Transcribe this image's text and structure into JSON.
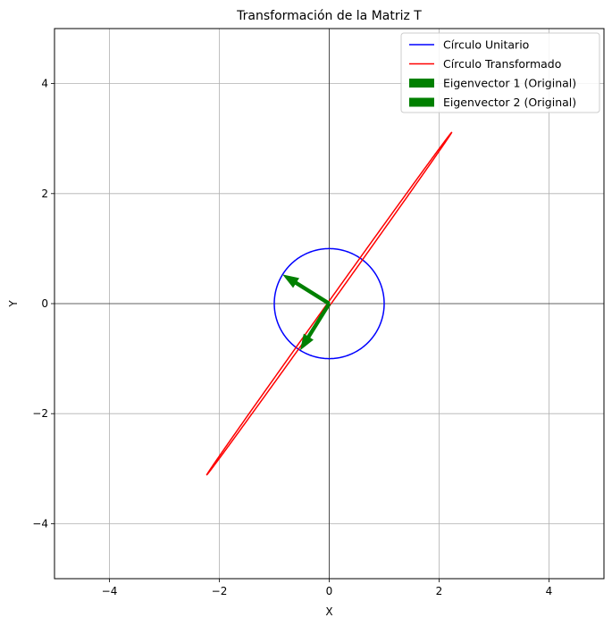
{
  "chart_data": {
    "type": "line",
    "title": "Transformación de la Matriz T",
    "xlabel": "X",
    "ylabel": "Y",
    "xlim": [
      -5,
      5
    ],
    "ylim": [
      -5,
      5
    ],
    "xticks": [
      -4,
      -2,
      0,
      2,
      4
    ],
    "yticks": [
      -4,
      -2,
      0,
      2,
      4
    ],
    "tick_labels_x": [
      "−4",
      "−2",
      "0",
      "2",
      "4"
    ],
    "tick_labels_y": [
      "−4",
      "−2",
      "0",
      "2",
      "4"
    ],
    "grid": true,
    "origin_axes": true,
    "legend_position": "top-right",
    "series": [
      {
        "name": "Círculo Unitario",
        "kind": "parametric",
        "color": "#0000ff",
        "parametric": {
          "x": [
            1,
            0
          ],
          "y": [
            0,
            1
          ]
        }
      },
      {
        "name": "Círculo Transformado",
        "kind": "parametric",
        "color": "#ff0000",
        "parametric": {
          "x": [
            1.6,
            1.55
          ],
          "y": [
            2.2,
            2.2
          ]
        }
      },
      {
        "name": "Eigenvector 1 (Original)",
        "kind": "arrow",
        "color": "#008000",
        "from": [
          0,
          0
        ],
        "to": [
          -0.85,
          0.53
        ]
      },
      {
        "name": "Eigenvector 2 (Original)",
        "kind": "arrow",
        "color": "#008000",
        "from": [
          0,
          0
        ],
        "to": [
          -0.53,
          -0.85
        ]
      }
    ]
  }
}
